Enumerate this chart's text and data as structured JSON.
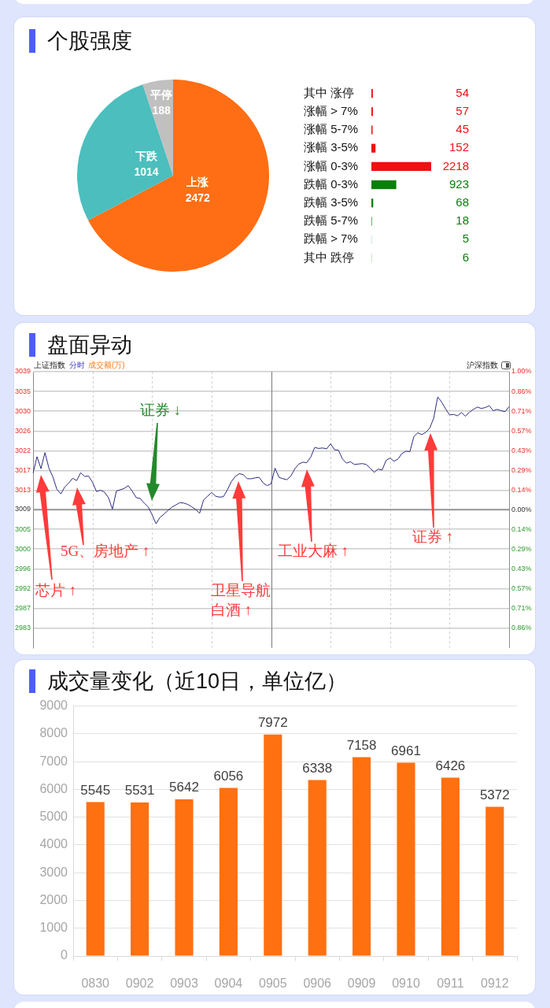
{
  "chart_data": [
    {
      "type": "pie",
      "title": "个股强度",
      "categories": [
        "上涨",
        "下跌",
        "平停"
      ],
      "values": [
        2472,
        1014,
        188
      ],
      "colors": [
        "#ff6e14",
        "#4cbebe",
        "#c0c0c0"
      ],
      "data_labels": true
    },
    {
      "type": "bar",
      "orientation": "horizontal",
      "categories": [
        "其中 涨停",
        "涨幅 > 7%",
        "涨幅 5-7%",
        "涨幅 3-5%",
        "涨幅 0-3%",
        "跌幅 0-3%",
        "跌幅 3-5%",
        "跌幅 5-7%",
        "跌幅 > 7%",
        "其中 跌停"
      ],
      "values": [
        54,
        57,
        45,
        152,
        2218,
        923,
        68,
        18,
        5,
        6
      ],
      "colors": [
        "#ee1111",
        "#ee1111",
        "#ee1111",
        "#ee1111",
        "#ee1111",
        "#0a7f0a",
        "#0a7f0a",
        "#0a7f0a",
        "#0a7f0a",
        "#0a7f0a"
      ],
      "data_labels": true,
      "tick_labels": "y"
    },
    {
      "type": "line",
      "title": "盘面异动",
      "categories": [
        null,
        null,
        null,
        null,
        null,
        null,
        null,
        null,
        null,
        null,
        null,
        null,
        null,
        null,
        null,
        null,
        null,
        null,
        null,
        null,
        null,
        null,
        null,
        null,
        null,
        null,
        null,
        null,
        null,
        null,
        null,
        null,
        null,
        null,
        null,
        null,
        null,
        null,
        null,
        null,
        null,
        null,
        null,
        null,
        null,
        null,
        null,
        null,
        null,
        null,
        null,
        null,
        null,
        null,
        null,
        null,
        null,
        null,
        null,
        null,
        null,
        null,
        null,
        null,
        null,
        null,
        null,
        null,
        null,
        null,
        null,
        null,
        null,
        null,
        null,
        null,
        null,
        null,
        null,
        null,
        null,
        null,
        null,
        null,
        null,
        null,
        null,
        null,
        null,
        null,
        null,
        null,
        null,
        null,
        null,
        null,
        null,
        null,
        null,
        null,
        null,
        null,
        null,
        null,
        null,
        null,
        null,
        null,
        null,
        null,
        null,
        null,
        null,
        null,
        null,
        null,
        null,
        null,
        null,
        null,
        null
      ],
      "values": [
        3016.8,
        3020.4,
        3017.8,
        3021.3,
        3017.9,
        3016.0,
        3013.3,
        3012.3,
        3013.8,
        3014.7,
        3015.7,
        3015.2,
        3016.9,
        3016.1,
        3016.2,
        3014.8,
        3012.8,
        3013.1,
        3012.7,
        3011.5,
        3009.0,
        3012.9,
        3013.2,
        3013.5,
        3014.1,
        3012.9,
        3011.5,
        3011.3,
        3010.3,
        3009.5,
        3007.8,
        3005.8,
        3007.2,
        3007.9,
        3008.7,
        3009.4,
        3009.9,
        3010.4,
        3010.3,
        3010.0,
        3009.5,
        3008.9,
        3008.1,
        3011.0,
        3011.8,
        3012.6,
        3011.8,
        3011.6,
        3011.7,
        3013.2,
        3015.0,
        3016.1,
        3016.7,
        3016.5,
        3015.6,
        3015.6,
        3015.8,
        3015.9,
        3014.7,
        3014.1,
        3014.5,
        3017.9,
        3015.9,
        3015.6,
        3015.4,
        3016.2,
        3017.8,
        3018.8,
        3019.2,
        3019.1,
        3020.3,
        3022.4,
        3022.2,
        3022.3,
        3022.1,
        3023.2,
        3021.9,
        3021.8,
        3019.9,
        3019.0,
        3019.3,
        3018.7,
        3018.8,
        3018.9,
        3018.7,
        3017.9,
        3017.0,
        3017.7,
        3017.5,
        3019.6,
        3020.1,
        3019.4,
        3019.9,
        3021.1,
        3021.6,
        3021.5,
        3024.8,
        3025.6,
        3025.2,
        3025.7,
        3026.6,
        3028.8,
        3033.4,
        3032.3,
        3030.8,
        3029.5,
        3029.6,
        3029.3,
        3030.0,
        3029.2,
        3030.1,
        3030.7,
        3031.2,
        3030.9,
        3031.1,
        3031.5,
        3030.4,
        3030.7,
        3030.4,
        3030.2,
        3031.3
      ],
      "color": "#2b2b80",
      "ylim": [
        2978.8,
        3038.9
      ],
      "yticks": [
        {
          "value": 3038.9,
          "label": "3039"
        },
        {
          "value": 3034.6,
          "label": "3035"
        },
        {
          "value": 3030.3,
          "label": "3030"
        },
        {
          "value": 3026.0,
          "label": "3026"
        },
        {
          "value": 3021.7,
          "label": "3022"
        },
        {
          "value": 3017.4,
          "label": "3017"
        },
        {
          "value": 3013.1,
          "label": "3013"
        },
        {
          "value": 3008.9,
          "label": "3009"
        },
        {
          "value": 3004.6,
          "label": "3005"
        },
        {
          "value": 3000.3,
          "label": "3000"
        },
        {
          "value": 2996.0,
          "label": "2996"
        },
        {
          "value": 2991.7,
          "label": "2992"
        },
        {
          "value": 2987.4,
          "label": "2987"
        },
        {
          "value": 2983.1,
          "label": "2983"
        }
      ],
      "y2lim": [
        -1,
        1
      ],
      "y2ticks": [
        {
          "value": 1,
          "label": "1.00%"
        },
        {
          "value": 0.857,
          "label": "0.86%"
        },
        {
          "value": 0.714,
          "label": "0.71%"
        },
        {
          "value": 0.571,
          "label": "0.57%"
        },
        {
          "value": 0.429,
          "label": "0.43%"
        },
        {
          "value": 0.286,
          "label": "0.29%"
        },
        {
          "value": 0.143,
          "label": "0.14%"
        },
        {
          "value": 0,
          "label": "0.00%"
        },
        {
          "value": -0.143,
          "label": "0.14%"
        },
        {
          "value": -0.286,
          "label": "0.29%"
        },
        {
          "value": -0.429,
          "label": "0.43%"
        },
        {
          "value": -0.571,
          "label": "0.57%"
        },
        {
          "value": -0.714,
          "label": "0.71%"
        },
        {
          "value": -0.857,
          "label": "0.86%"
        }
      ],
      "ref_lines": [
        {
          "axis": "y2",
          "value": 0,
          "color": "#9a9a9a"
        }
      ],
      "grid": true,
      "tick_labels": "y",
      "annotations": [
        "上证指数",
        "分时",
        "成交额(万)",
        "沪深指数",
        "证券 ↓",
        "芯片 ↑",
        "5G、房地产 ↑",
        "卫星导航",
        "白酒 ↑",
        "工业大麻 ↑",
        "证券 ↑"
      ]
    },
    {
      "type": "bar",
      "title": "成交量变化（近10日，单位亿）",
      "categories": [
        "0830",
        "0902",
        "0903",
        "0904",
        "0905",
        "0906",
        "0909",
        "0910",
        "0911",
        "0912"
      ],
      "values": [
        5545,
        5531,
        5642,
        6056,
        7972,
        6338,
        7158,
        6961,
        6426,
        5372
      ],
      "color": "#ff7010",
      "ylim": [
        0,
        9000
      ],
      "yticks": [
        0,
        1000,
        2000,
        3000,
        4000,
        5000,
        6000,
        7000,
        8000,
        9000
      ],
      "grid": "y",
      "data_labels": true
    }
  ]
}
